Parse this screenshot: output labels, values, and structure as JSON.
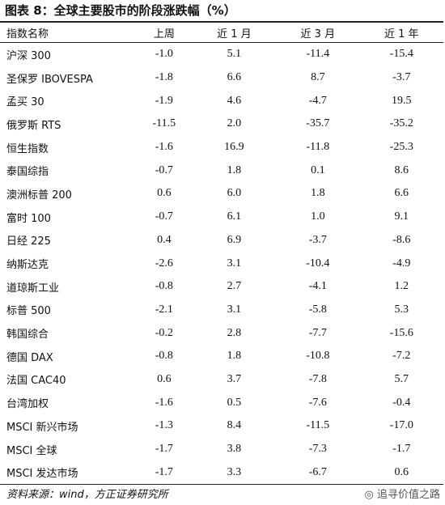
{
  "header": {
    "title": "图表 8：全球主要股市的阶段涨跌幅（%）"
  },
  "table": {
    "columns": [
      "指数名称",
      "上周",
      "近 1 月",
      "近 3 月",
      "近 1 年"
    ],
    "rows": [
      [
        "沪深 300",
        "-1.0",
        "5.1",
        "-11.4",
        "-15.4"
      ],
      [
        "圣保罗 IBOVESPA",
        "-1.8",
        "6.6",
        "8.7",
        "-3.7"
      ],
      [
        "孟买 30",
        "-1.9",
        "4.6",
        "-4.7",
        "19.5"
      ],
      [
        "俄罗斯 RTS",
        "-11.5",
        "2.0",
        "-35.7",
        "-35.2"
      ],
      [
        "恒生指数",
        "-1.6",
        "16.9",
        "-11.8",
        "-25.3"
      ],
      [
        "泰国综指",
        "-0.7",
        "1.8",
        "0.1",
        "8.6"
      ],
      [
        "澳洲标普 200",
        "0.6",
        "6.0",
        "1.8",
        "6.6"
      ],
      [
        "富时 100",
        "-0.7",
        "6.1",
        "1.0",
        "9.1"
      ],
      [
        "日经 225",
        "0.4",
        "6.9",
        "-3.7",
        "-8.6"
      ],
      [
        "纳斯达克",
        "-2.6",
        "3.1",
        "-10.4",
        "-4.9"
      ],
      [
        "道琼斯工业",
        "-0.8",
        "2.7",
        "-4.1",
        "1.2"
      ],
      [
        "标普 500",
        "-2.1",
        "3.1",
        "-5.8",
        "5.3"
      ],
      [
        "韩国综合",
        "-0.2",
        "2.8",
        "-7.7",
        "-15.6"
      ],
      [
        "德国 DAX",
        "-0.8",
        "1.8",
        "-10.8",
        "-7.2"
      ],
      [
        "法国 CAC40",
        "0.6",
        "3.7",
        "-7.8",
        "5.7"
      ],
      [
        "台湾加权",
        "-1.6",
        "0.5",
        "-7.6",
        "-0.4"
      ],
      [
        "MSCI 新兴市场",
        "-1.3",
        "8.4",
        "-11.5",
        "-17.0"
      ],
      [
        "MSCI 全球",
        "-1.7",
        "3.8",
        "-7.3",
        "-1.7"
      ],
      [
        "MSCI 发达市场",
        "-1.7",
        "3.3",
        "-6.7",
        "0.6"
      ]
    ]
  },
  "footer": {
    "source": "资料来源：wind，方正证券研究所",
    "watermark": "追寻价值之路"
  }
}
